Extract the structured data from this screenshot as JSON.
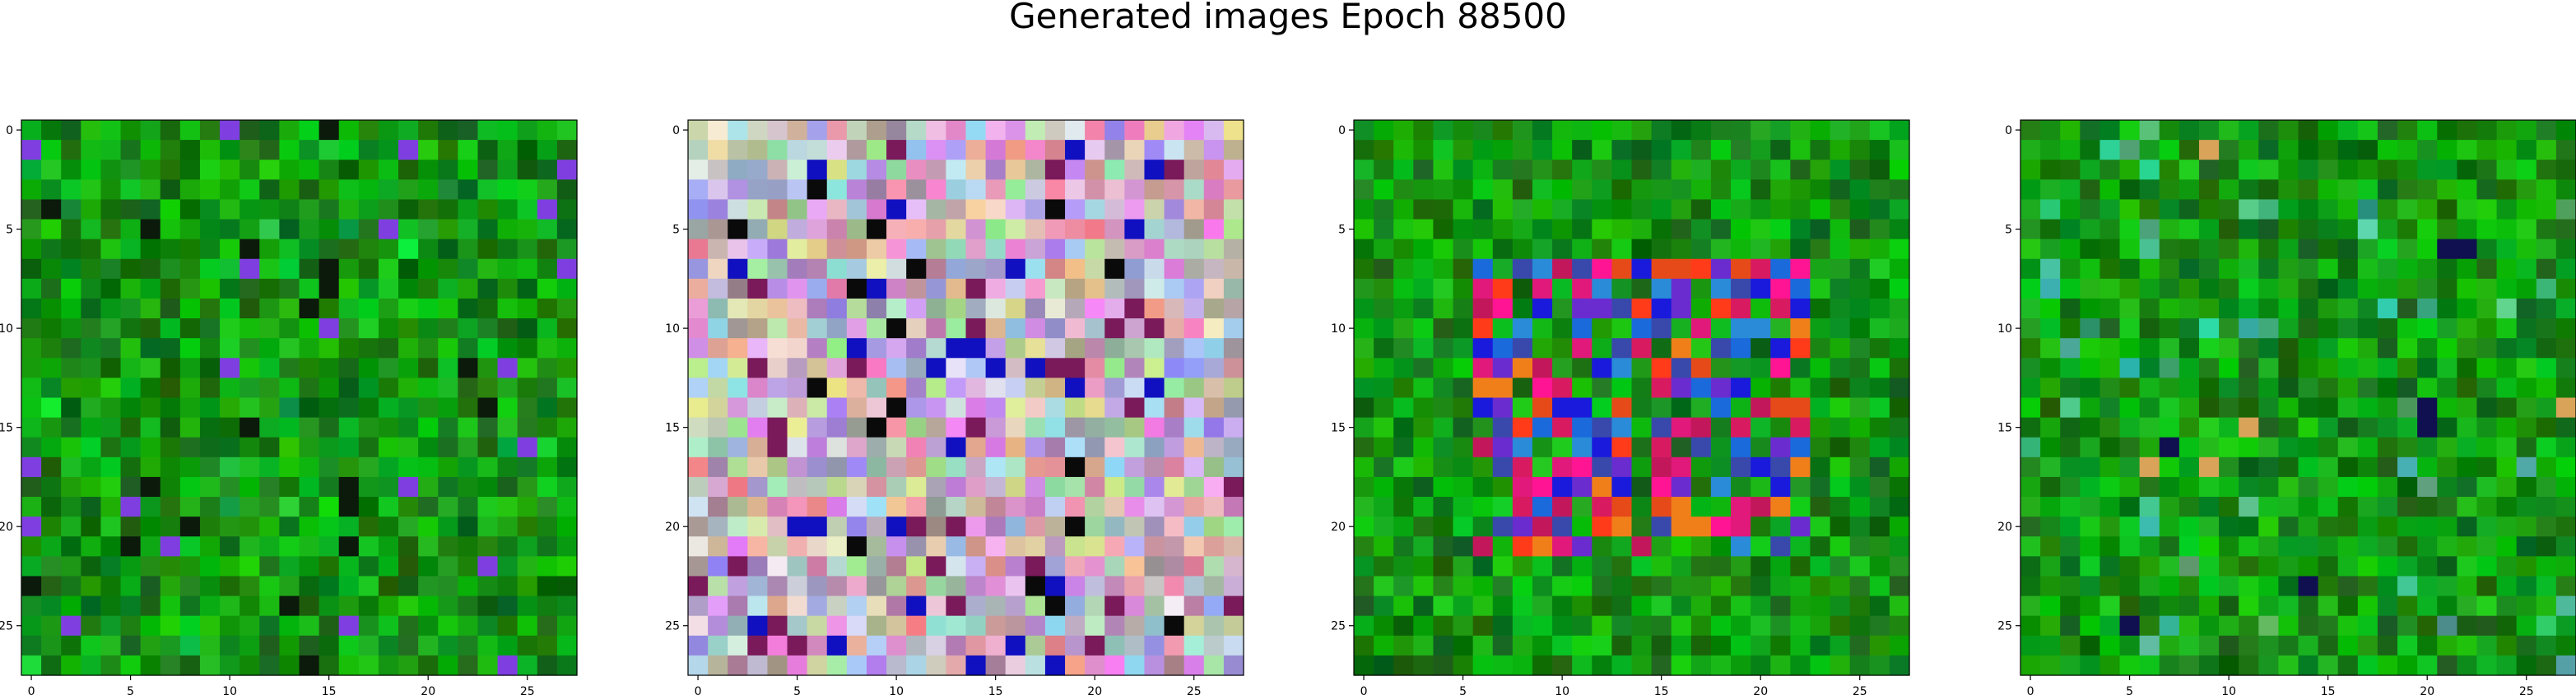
{
  "title": "Generated images Epoch 88500",
  "axes": {
    "x_ticks": [
      "0",
      "5",
      "10",
      "15",
      "20",
      "25"
    ],
    "y_ticks": [
      "0",
      "5",
      "10",
      "15",
      "20",
      "25"
    ],
    "grid_size": 28
  },
  "panels": [
    {
      "id": "panel-1",
      "palette": "green",
      "bg": "#0c7a0c"
    },
    {
      "id": "panel-2",
      "palette": "pastel",
      "bg": "#c7a9c7"
    },
    {
      "id": "panel-3",
      "palette": "green-core",
      "bg": "#0e7d12"
    },
    {
      "id": "panel-4",
      "palette": "green-sparse",
      "bg": "#0f7d19"
    }
  ]
}
